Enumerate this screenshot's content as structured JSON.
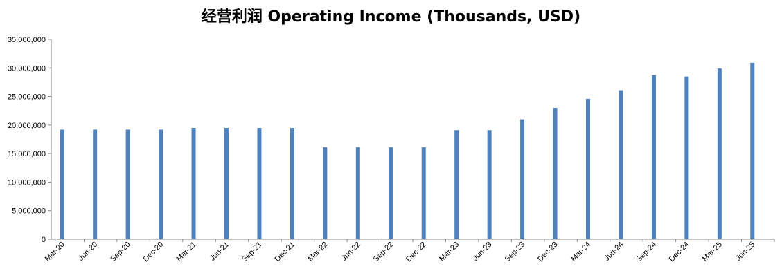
{
  "chart_data": {
    "type": "bar",
    "title": "经营利润 Operating Income (Thousands, USD)",
    "xlabel": "",
    "ylabel": "",
    "ylim": [
      0,
      35000000
    ],
    "y_ticks": [
      "0",
      "5,000,000",
      "10,000,000",
      "15,000,000",
      "20,000,000",
      "25,000,000",
      "30,000,000",
      "35,000,000"
    ],
    "grid": false,
    "color": "#4F81BD",
    "categories": [
      "Mar-20",
      "Jun-20",
      "Sep-20",
      "Dec-20",
      "Mar-21",
      "Jun-21",
      "Sep-21",
      "Dec-21",
      "Mar-22",
      "Jun-22",
      "Sep-22",
      "Dec-22",
      "Mar-23",
      "Jun-23",
      "Sep-23",
      "Dec-23",
      "Mar-24",
      "Jun-24",
      "Sep-24",
      "Dec-24",
      "Mar-25",
      "Jun-25"
    ],
    "values": [
      19200000,
      19200000,
      19200000,
      19200000,
      19500000,
      19500000,
      19500000,
      19500000,
      16100000,
      16100000,
      16100000,
      16100000,
      19100000,
      19100000,
      21000000,
      23000000,
      24600000,
      26100000,
      28700000,
      28500000,
      29900000,
      30900000
    ]
  }
}
